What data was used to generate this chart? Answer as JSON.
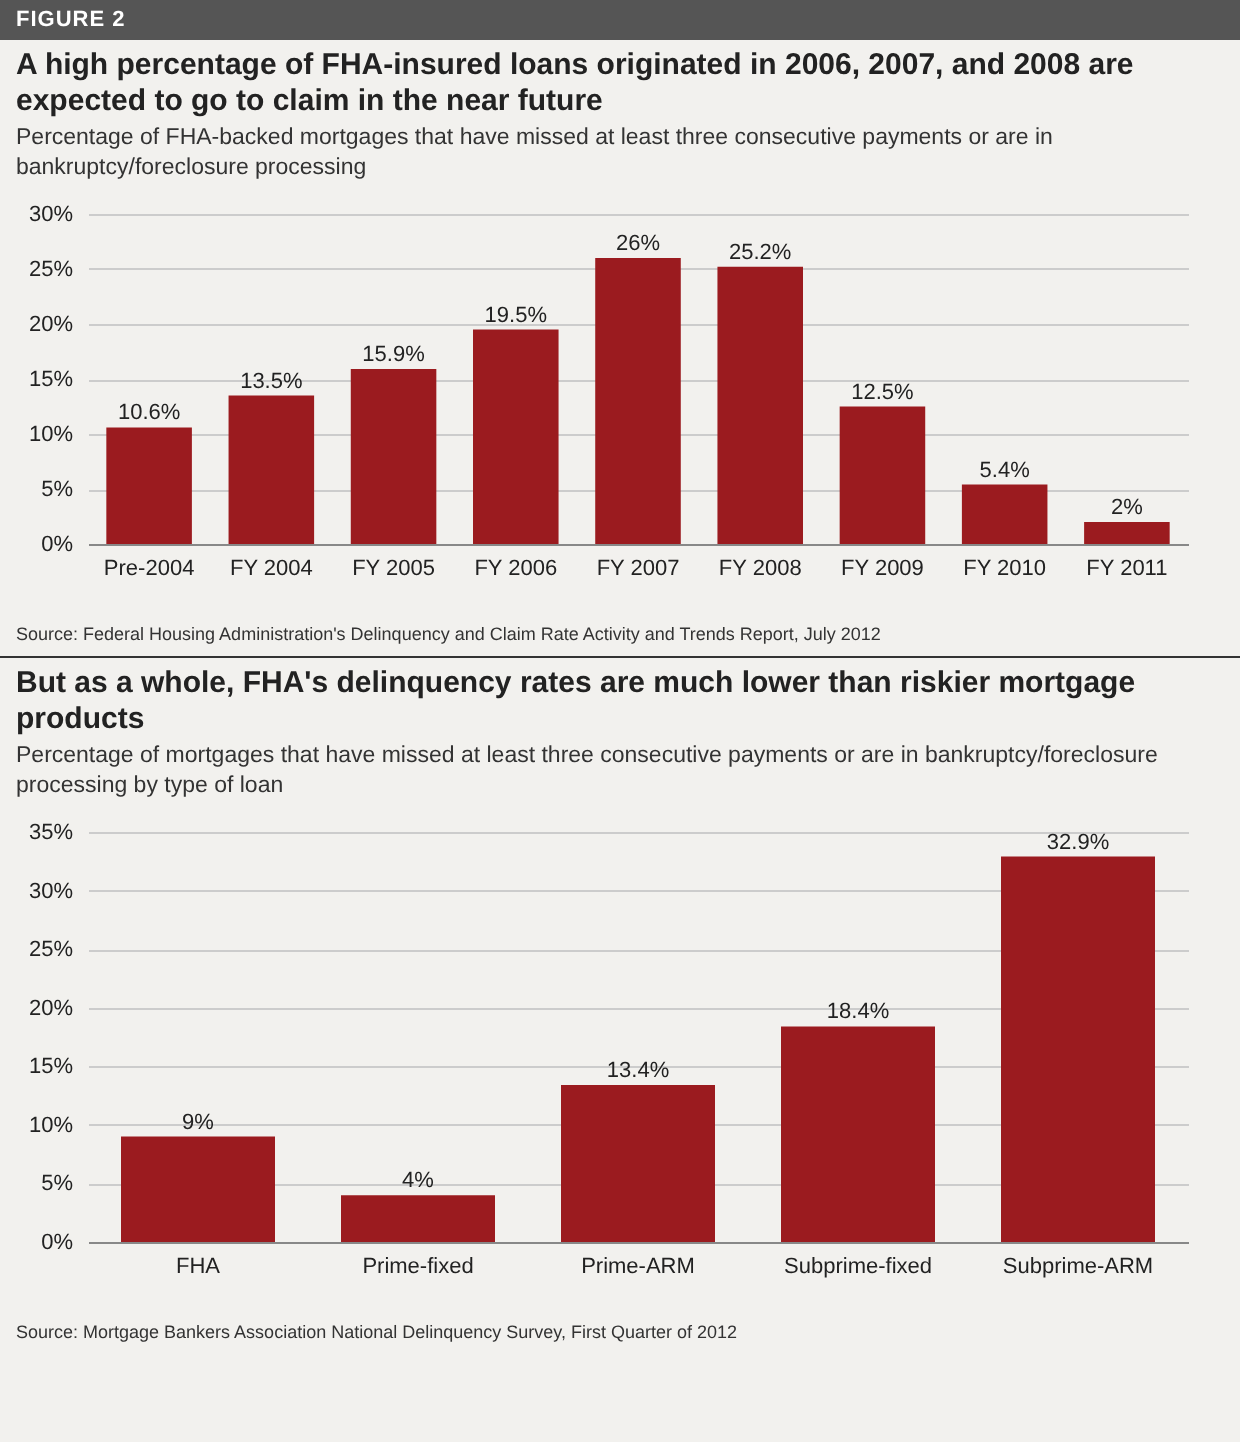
{
  "chart_data": [
    {
      "type": "bar",
      "title": "A high percentage of FHA-insured loans originated in 2006, 2007, and 2008 are expected to go to claim in the near future",
      "subtitle": "Percentage of FHA-backed mortgages that have missed at least three consecutive payments or are in bankruptcy/foreclosure processing",
      "categories": [
        "Pre-2004",
        "FY 2004",
        "FY 2005",
        "FY 2006",
        "FY 2007",
        "FY 2008",
        "FY 2009",
        "FY 2010",
        "FY 2011"
      ],
      "values": [
        10.6,
        13.5,
        15.9,
        19.5,
        26,
        25.2,
        12.5,
        5.4,
        2
      ],
      "value_labels": [
        "10.6%",
        "13.5%",
        "15.9%",
        "19.5%",
        "26%",
        "25.2%",
        "12.5%",
        "5.4%",
        "2%"
      ],
      "color": "#9b1b1f",
      "ylim": [
        0,
        30
      ],
      "yticks": [
        {
          "value": 0,
          "label": "0%"
        },
        {
          "value": 5,
          "label": "5%"
        },
        {
          "value": 10,
          "label": "10%"
        },
        {
          "value": 15,
          "label": "15%"
        },
        {
          "value": 20,
          "label": "20%"
        },
        {
          "value": 25,
          "label": "25%"
        },
        {
          "value": 30,
          "label": "30%"
        }
      ],
      "grid": "y",
      "annotations": [
        "FIGURE 2",
        "Source: Federal Housing Administration's Delinquency and Claim Rate Activity and Trends Report, July 2012"
      ]
    },
    {
      "type": "bar",
      "title": "But as a whole, FHA's delinquency rates are much lower than riskier mortgage products",
      "subtitle": "Percentage of mortgages that have missed at least three consecutive payments or are in bankruptcy/foreclosure processing by type of loan",
      "categories": [
        "FHA",
        "Prime-fixed",
        "Prime-ARM",
        "Subprime-fixed",
        "Subprime-ARM"
      ],
      "values": [
        9,
        4,
        13.4,
        18.4,
        32.9
      ],
      "value_labels": [
        "9%",
        "4%",
        "13.4%",
        "18.4%",
        "32.9%"
      ],
      "color": "#9b1b1f",
      "ylim": [
        0,
        35
      ],
      "yticks": [
        {
          "value": 0,
          "label": "0%"
        },
        {
          "value": 5,
          "label": "5%"
        },
        {
          "value": 10,
          "label": "10%"
        },
        {
          "value": 15,
          "label": "15%"
        },
        {
          "value": 20,
          "label": "20%"
        },
        {
          "value": 25,
          "label": "25%"
        },
        {
          "value": 30,
          "label": "30%"
        },
        {
          "value": 35,
          "label": "35%"
        }
      ],
      "grid": "y",
      "annotations": [
        "Source: Mortgage Bankers Association National Delinquency Survey, First Quarter of 2012"
      ]
    }
  ]
}
